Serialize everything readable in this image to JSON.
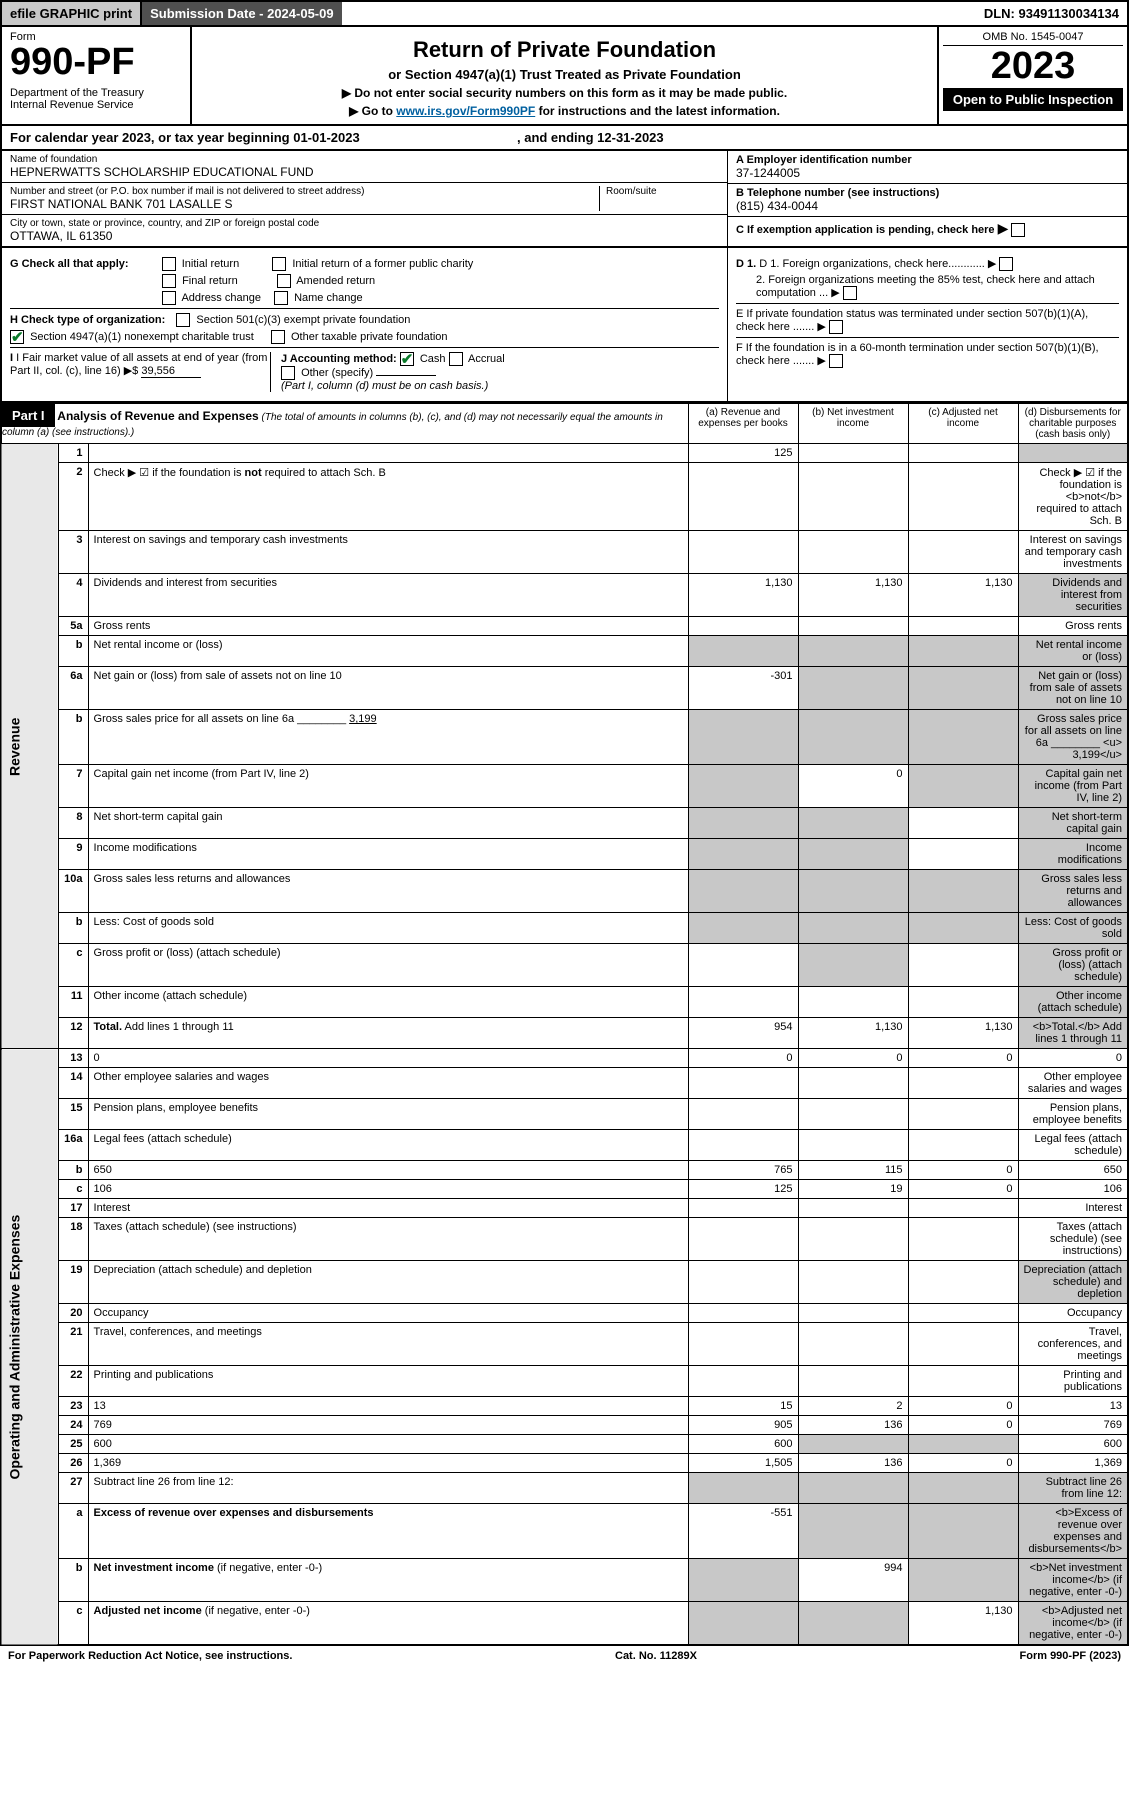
{
  "topbar": {
    "efile": "efile GRAPHIC print",
    "subdate_label": "Submission Date - 2024-05-09",
    "dln": "DLN: 93491130034134"
  },
  "header": {
    "form_label": "Form",
    "form_number": "990-PF",
    "dept": "Department of the Treasury\nInternal Revenue Service",
    "title": "Return of Private Foundation",
    "subtitle": "or Section 4947(a)(1) Trust Treated as Private Foundation",
    "note1": "▶ Do not enter social security numbers on this form as it may be made public.",
    "note2_pre": "▶ Go to ",
    "note2_link": "www.irs.gov/Form990PF",
    "note2_post": " for instructions and the latest information.",
    "omb": "OMB No. 1545-0047",
    "year": "2023",
    "open": "Open to Public Inspection"
  },
  "calyear": {
    "text_a": "For calendar year 2023, or tax year beginning 01-01-2023",
    "text_b": ", and ending 12-31-2023"
  },
  "id": {
    "name_label": "Name of foundation",
    "name": "HEPNERWATTS SCHOLARSHIP EDUCATIONAL FUND",
    "addr_label": "Number and street (or P.O. box number if mail is not delivered to street address)",
    "addr": "FIRST NATIONAL BANK 701 LASALLE S",
    "room_label": "Room/suite",
    "city_label": "City or town, state or province, country, and ZIP or foreign postal code",
    "city": "OTTAWA, IL  61350",
    "ein_label": "A Employer identification number",
    "ein": "37-1244005",
    "phone_label": "B Telephone number (see instructions)",
    "phone": "(815) 434-0044",
    "c_label": "C If exemption application is pending, check here",
    "d1": "D 1. Foreign organizations, check here............",
    "d2": "2. Foreign organizations meeting the 85% test, check here and attach computation ...",
    "e": "E  If private foundation status was terminated under section 507(b)(1)(A), check here .......",
    "f": "F  If the foundation is in a 60-month termination under section 507(b)(1)(B), check here .......",
    "g_label": "G Check all that apply:",
    "g_opts": [
      "Initial return",
      "Final return",
      "Address change",
      "Initial return of a former public charity",
      "Amended return",
      "Name change"
    ],
    "h_label": "H Check type of organization:",
    "h1": "Section 501(c)(3) exempt private foundation",
    "h2": "Section 4947(a)(1) nonexempt charitable trust",
    "h3": "Other taxable private foundation",
    "i_label": "I Fair market value of all assets at end of year (from Part II, col. (c), line 16)",
    "i_val": "39,556",
    "j_label": "J Accounting method:",
    "j_cash": "Cash",
    "j_accrual": "Accrual",
    "j_other": "Other (specify)",
    "j_note": "(Part I, column (d) must be on cash basis.)"
  },
  "part1": {
    "label": "Part I",
    "title": "Analysis of Revenue and Expenses",
    "title_note": "(The total of amounts in columns (b), (c), and (d) may not necessarily equal the amounts in column (a) (see instructions).)",
    "col_a": "(a)  Revenue and expenses per books",
    "col_b": "(b)  Net investment income",
    "col_c": "(c)  Adjusted net income",
    "col_d": "(d)  Disbursements for charitable purposes (cash basis only)",
    "side_rev": "Revenue",
    "side_exp": "Operating and Administrative Expenses"
  },
  "rows": [
    {
      "n": "1",
      "d": "",
      "a": "125",
      "b": "",
      "c": "",
      "dshade": true
    },
    {
      "n": "2",
      "d": "Check ▶ ☑ if the foundation is <b>not</b> required to attach Sch. B",
      "nodata": true
    },
    {
      "n": "3",
      "d": "Interest on savings and temporary cash investments"
    },
    {
      "n": "4",
      "d": "Dividends and interest from securities",
      "a": "1,130",
      "b": "1,130",
      "c": "1,130",
      "dshade": true
    },
    {
      "n": "5a",
      "d": "Gross rents"
    },
    {
      "n": "b",
      "d": "Net rental income or (loss)",
      "allshade": true
    },
    {
      "n": "6a",
      "d": "Net gain or (loss) from sale of assets not on line 10",
      "a": "-301",
      "bshade": true,
      "cshade": true,
      "dshade": true
    },
    {
      "n": "b",
      "d": "Gross sales price for all assets on line 6a ________ <u> 3,199</u>",
      "allshade": true
    },
    {
      "n": "7",
      "d": "Capital gain net income (from Part IV, line 2)",
      "ashade": true,
      "b": "0",
      "cshade": true,
      "dshade": true
    },
    {
      "n": "8",
      "d": "Net short-term capital gain",
      "ashade": true,
      "bshade": true,
      "dshade": true
    },
    {
      "n": "9",
      "d": "Income modifications",
      "ashade": true,
      "bshade": true,
      "dshade": true
    },
    {
      "n": "10a",
      "d": "Gross sales less returns and allowances",
      "allshade": true
    },
    {
      "n": "b",
      "d": "Less: Cost of goods sold",
      "allshade": true
    },
    {
      "n": "c",
      "d": "Gross profit or (loss) (attach schedule)",
      "bshade": true,
      "dshade": true
    },
    {
      "n": "11",
      "d": "Other income (attach schedule)",
      "dshade": true
    },
    {
      "n": "12",
      "d": "<b>Total.</b> Add lines 1 through 11",
      "a": "954",
      "b": "1,130",
      "c": "1,130",
      "dshade": true
    },
    {
      "n": "13",
      "d": "0",
      "a": "0",
      "b": "0",
      "c": "0"
    },
    {
      "n": "14",
      "d": "Other employee salaries and wages"
    },
    {
      "n": "15",
      "d": "Pension plans, employee benefits"
    },
    {
      "n": "16a",
      "d": "Legal fees (attach schedule)"
    },
    {
      "n": "b",
      "d": "650",
      "a": "765",
      "b": "115",
      "c": "0"
    },
    {
      "n": "c",
      "d": "106",
      "a": "125",
      "b": "19",
      "c": "0"
    },
    {
      "n": "17",
      "d": "Interest"
    },
    {
      "n": "18",
      "d": "Taxes (attach schedule) (see instructions)"
    },
    {
      "n": "19",
      "d": "Depreciation (attach schedule) and depletion",
      "dshade": true
    },
    {
      "n": "20",
      "d": "Occupancy"
    },
    {
      "n": "21",
      "d": "Travel, conferences, and meetings"
    },
    {
      "n": "22",
      "d": "Printing and publications"
    },
    {
      "n": "23",
      "d": "13",
      "a": "15",
      "b": "2",
      "c": "0"
    },
    {
      "n": "24",
      "d": "769",
      "a": "905",
      "b": "136",
      "c": "0"
    },
    {
      "n": "25",
      "d": "600",
      "a": "600",
      "bshade": true,
      "cshade": true
    },
    {
      "n": "26",
      "d": "1,369",
      "a": "1,505",
      "b": "136",
      "c": "0"
    },
    {
      "n": "27",
      "d": "Subtract line 26 from line 12:",
      "allshade": true
    },
    {
      "n": "a",
      "d": "<b>Excess of revenue over expenses and disbursements</b>",
      "a": "-551",
      "bshade": true,
      "cshade": true,
      "dshade": true
    },
    {
      "n": "b",
      "d": "<b>Net investment income</b> (if negative, enter -0-)",
      "ashade": true,
      "b": "994",
      "cshade": true,
      "dshade": true
    },
    {
      "n": "c",
      "d": "<b>Adjusted net income</b> (if negative, enter -0-)",
      "ashade": true,
      "bshade": true,
      "c": "1,130",
      "dshade": true
    }
  ],
  "footer": {
    "left": "For Paperwork Reduction Act Notice, see instructions.",
    "center": "Cat. No. 11289X",
    "right": "Form 990-PF (2023)"
  }
}
